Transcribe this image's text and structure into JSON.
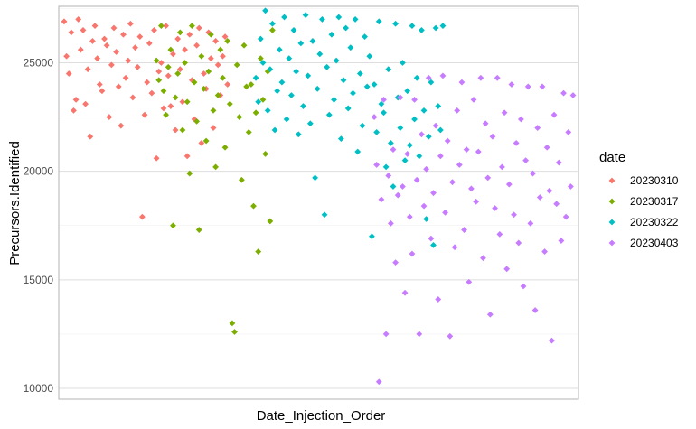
{
  "chart_data": {
    "type": "scatter",
    "title": "",
    "xlabel": "Date_Injection_Order",
    "ylabel": "Precursors.Identified",
    "x_tick_labels": "none",
    "ylim": [
      9500,
      27600
    ],
    "y_ticks": [
      10000,
      15000,
      20000,
      25000
    ],
    "y_tick_labels": [
      "10000",
      "15000",
      "20000",
      "25000"
    ],
    "grid": true,
    "legend_title": "date",
    "legend_position": "right",
    "marker": "diamond",
    "x_index_range": [
      0,
      200
    ],
    "series": [
      {
        "name": "20230310",
        "color": "#F8766D",
        "points": [
          [
            1,
            26900
          ],
          [
            2,
            25300
          ],
          [
            3,
            24500
          ],
          [
            4,
            26400
          ],
          [
            5,
            22800
          ],
          [
            6,
            23300
          ],
          [
            7,
            27000
          ],
          [
            8,
            25600
          ],
          [
            9,
            26500
          ],
          [
            10,
            23100
          ],
          [
            11,
            24700
          ],
          [
            12,
            21600
          ],
          [
            13,
            26000
          ],
          [
            14,
            26700
          ],
          [
            15,
            25200
          ],
          [
            16,
            24000
          ],
          [
            17,
            23700
          ],
          [
            18,
            26100
          ],
          [
            19,
            25800
          ],
          [
            20,
            22500
          ],
          [
            21,
            24900
          ],
          [
            22,
            26600
          ],
          [
            23,
            25500
          ],
          [
            24,
            23900
          ],
          [
            25,
            22100
          ],
          [
            26,
            26300
          ],
          [
            27,
            24300
          ],
          [
            28,
            25100
          ],
          [
            29,
            26800
          ],
          [
            30,
            23400
          ],
          [
            31,
            25700
          ],
          [
            32,
            24800
          ],
          [
            33,
            26200
          ],
          [
            34,
            17900
          ],
          [
            35,
            22600
          ],
          [
            36,
            24100
          ],
          [
            37,
            25900
          ],
          [
            38,
            23600
          ],
          [
            39,
            26500
          ],
          [
            40,
            20600
          ],
          [
            41,
            24600
          ],
          [
            42,
            25000
          ],
          [
            43,
            22900
          ],
          [
            44,
            26700
          ],
          [
            45,
            24400
          ],
          [
            46,
            23000
          ],
          [
            47,
            25400
          ],
          [
            48,
            21900
          ],
          [
            49,
            26100
          ],
          [
            50,
            24700
          ],
          [
            51,
            23200
          ],
          [
            52,
            25600
          ],
          [
            53,
            20700
          ],
          [
            54,
            26300
          ],
          [
            55,
            24200
          ],
          [
            56,
            22400
          ],
          [
            57,
            25800
          ],
          [
            58,
            26600
          ],
          [
            59,
            21300
          ],
          [
            60,
            24500
          ],
          [
            61,
            23800
          ],
          [
            62,
            26400
          ],
          [
            63,
            25200
          ],
          [
            64,
            22000
          ],
          [
            65,
            26000
          ],
          [
            66,
            24900
          ],
          [
            67,
            23500
          ],
          [
            68,
            25300
          ],
          [
            69,
            26200
          ],
          [
            70,
            24000
          ]
        ]
      },
      {
        "name": "20230317",
        "color": "#7CAE00",
        "points": [
          [
            40,
            25100
          ],
          [
            41,
            24200
          ],
          [
            42,
            26700
          ],
          [
            43,
            23700
          ],
          [
            44,
            22600
          ],
          [
            45,
            24800
          ],
          [
            46,
            25600
          ],
          [
            47,
            17500
          ],
          [
            48,
            23400
          ],
          [
            49,
            24500
          ],
          [
            50,
            26400
          ],
          [
            51,
            21900
          ],
          [
            52,
            25000
          ],
          [
            53,
            23200
          ],
          [
            54,
            19900
          ],
          [
            55,
            26700
          ],
          [
            56,
            24100
          ],
          [
            57,
            22300
          ],
          [
            58,
            17300
          ],
          [
            59,
            25300
          ],
          [
            60,
            23800
          ],
          [
            61,
            21400
          ],
          [
            62,
            24600
          ],
          [
            63,
            26300
          ],
          [
            64,
            22800
          ],
          [
            65,
            20200
          ],
          [
            66,
            23500
          ],
          [
            67,
            25600
          ],
          [
            68,
            24300
          ],
          [
            69,
            21100
          ],
          [
            70,
            26000
          ],
          [
            71,
            23100
          ],
          [
            72,
            13000
          ],
          [
            73,
            12600
          ],
          [
            74,
            24900
          ],
          [
            75,
            22500
          ],
          [
            76,
            19600
          ],
          [
            77,
            25800
          ],
          [
            78,
            23900
          ],
          [
            79,
            21800
          ],
          [
            80,
            24000
          ],
          [
            81,
            18400
          ],
          [
            82,
            22700
          ],
          [
            83,
            16300
          ],
          [
            84,
            25200
          ],
          [
            85,
            23300
          ],
          [
            86,
            20800
          ],
          [
            87,
            24600
          ],
          [
            88,
            17700
          ],
          [
            89,
            26500
          ]
        ]
      },
      {
        "name": "20230322",
        "color": "#00BFC4",
        "points": [
          [
            82,
            24300
          ],
          [
            83,
            23200
          ],
          [
            84,
            26100
          ],
          [
            85,
            25000
          ],
          [
            86,
            27400
          ],
          [
            87,
            22800
          ],
          [
            88,
            24700
          ],
          [
            89,
            26800
          ],
          [
            90,
            21900
          ],
          [
            91,
            23700
          ],
          [
            92,
            25600
          ],
          [
            93,
            24100
          ],
          [
            94,
            27100
          ],
          [
            95,
            22400
          ],
          [
            96,
            25200
          ],
          [
            97,
            23500
          ],
          [
            98,
            26500
          ],
          [
            99,
            24600
          ],
          [
            100,
            21700
          ],
          [
            101,
            25900
          ],
          [
            102,
            23000
          ],
          [
            103,
            27200
          ],
          [
            104,
            24400
          ],
          [
            105,
            22200
          ],
          [
            106,
            26000
          ],
          [
            107,
            19700
          ],
          [
            108,
            23800
          ],
          [
            109,
            25400
          ],
          [
            110,
            27000
          ],
          [
            111,
            18000
          ],
          [
            112,
            24800
          ],
          [
            113,
            22600
          ],
          [
            114,
            26300
          ],
          [
            115,
            23300
          ],
          [
            116,
            25100
          ],
          [
            117,
            27100
          ],
          [
            118,
            21500
          ],
          [
            119,
            24200
          ],
          [
            120,
            26600
          ],
          [
            121,
            22900
          ],
          [
            122,
            25700
          ],
          [
            123,
            23600
          ],
          [
            124,
            27000
          ],
          [
            125,
            20900
          ],
          [
            126,
            24500
          ],
          [
            127,
            22100
          ],
          [
            128,
            26200
          ],
          [
            129,
            23900
          ],
          [
            130,
            25300
          ],
          [
            131,
            17000
          ],
          [
            132,
            24000
          ],
          [
            133,
            21800
          ],
          [
            134,
            26900
          ],
          [
            135,
            23100
          ],
          [
            136,
            22700
          ],
          [
            137,
            20200
          ],
          [
            138,
            24700
          ],
          [
            139,
            21300
          ],
          [
            140,
            19300
          ],
          [
            141,
            26800
          ],
          [
            142,
            23400
          ],
          [
            143,
            22000
          ],
          [
            144,
            25000
          ],
          [
            145,
            20500
          ],
          [
            146,
            23700
          ],
          [
            147,
            21200
          ],
          [
            148,
            26700
          ],
          [
            149,
            22400
          ],
          [
            150,
            24300
          ],
          [
            151,
            20700
          ],
          [
            152,
            26500
          ],
          [
            153,
            22800
          ],
          [
            154,
            17800
          ],
          [
            155,
            21600
          ],
          [
            156,
            24100
          ],
          [
            157,
            16600
          ],
          [
            158,
            26600
          ],
          [
            159,
            23000
          ],
          [
            160,
            21900
          ],
          [
            161,
            26700
          ]
        ]
      },
      {
        "name": "20230403",
        "color": "#C77CFF",
        "points": [
          [
            132,
            22500
          ],
          [
            133,
            20300
          ],
          [
            134,
            10300
          ],
          [
            135,
            18700
          ],
          [
            136,
            23300
          ],
          [
            137,
            12500
          ],
          [
            138,
            19800
          ],
          [
            139,
            17600
          ],
          [
            140,
            21000
          ],
          [
            141,
            15800
          ],
          [
            142,
            18900
          ],
          [
            143,
            23400
          ],
          [
            144,
            19300
          ],
          [
            145,
            14400
          ],
          [
            146,
            20800
          ],
          [
            147,
            17900
          ],
          [
            148,
            16200
          ],
          [
            149,
            23300
          ],
          [
            150,
            19600
          ],
          [
            151,
            12500
          ],
          [
            152,
            21700
          ],
          [
            153,
            18400
          ],
          [
            154,
            20100
          ],
          [
            155,
            24300
          ],
          [
            156,
            16900
          ],
          [
            157,
            19000
          ],
          [
            158,
            22100
          ],
          [
            159,
            14100
          ],
          [
            160,
            20700
          ],
          [
            161,
            24400
          ],
          [
            162,
            18100
          ],
          [
            163,
            21400
          ],
          [
            164,
            12400
          ],
          [
            165,
            19500
          ],
          [
            166,
            16500
          ],
          [
            167,
            22800
          ],
          [
            168,
            20300
          ],
          [
            169,
            24100
          ],
          [
            170,
            17300
          ],
          [
            171,
            21000
          ],
          [
            172,
            14900
          ],
          [
            173,
            19200
          ],
          [
            174,
            23300
          ],
          [
            175,
            18600
          ],
          [
            176,
            20900
          ],
          [
            177,
            24300
          ],
          [
            178,
            16000
          ],
          [
            179,
            22200
          ],
          [
            180,
            19700
          ],
          [
            181,
            13400
          ],
          [
            182,
            21600
          ],
          [
            183,
            18300
          ],
          [
            184,
            24300
          ],
          [
            185,
            17100
          ],
          [
            186,
            20200
          ],
          [
            187,
            22700
          ],
          [
            188,
            15500
          ],
          [
            189,
            19400
          ],
          [
            190,
            24000
          ],
          [
            191,
            18000
          ],
          [
            192,
            21300
          ],
          [
            193,
            16700
          ],
          [
            194,
            22400
          ],
          [
            195,
            14700
          ],
          [
            196,
            20500
          ],
          [
            197,
            23900
          ],
          [
            198,
            17600
          ],
          [
            199,
            19900
          ],
          [
            200,
            13600
          ],
          [
            201,
            22000
          ],
          [
            202,
            18800
          ],
          [
            203,
            23900
          ],
          [
            204,
            16300
          ],
          [
            205,
            21100
          ],
          [
            206,
            19100
          ],
          [
            207,
            12200
          ],
          [
            208,
            22600
          ],
          [
            209,
            18500
          ],
          [
            210,
            20400
          ],
          [
            211,
            16800
          ],
          [
            212,
            23600
          ],
          [
            213,
            17900
          ],
          [
            214,
            21800
          ],
          [
            215,
            19300
          ],
          [
            216,
            23500
          ]
        ]
      }
    ]
  }
}
